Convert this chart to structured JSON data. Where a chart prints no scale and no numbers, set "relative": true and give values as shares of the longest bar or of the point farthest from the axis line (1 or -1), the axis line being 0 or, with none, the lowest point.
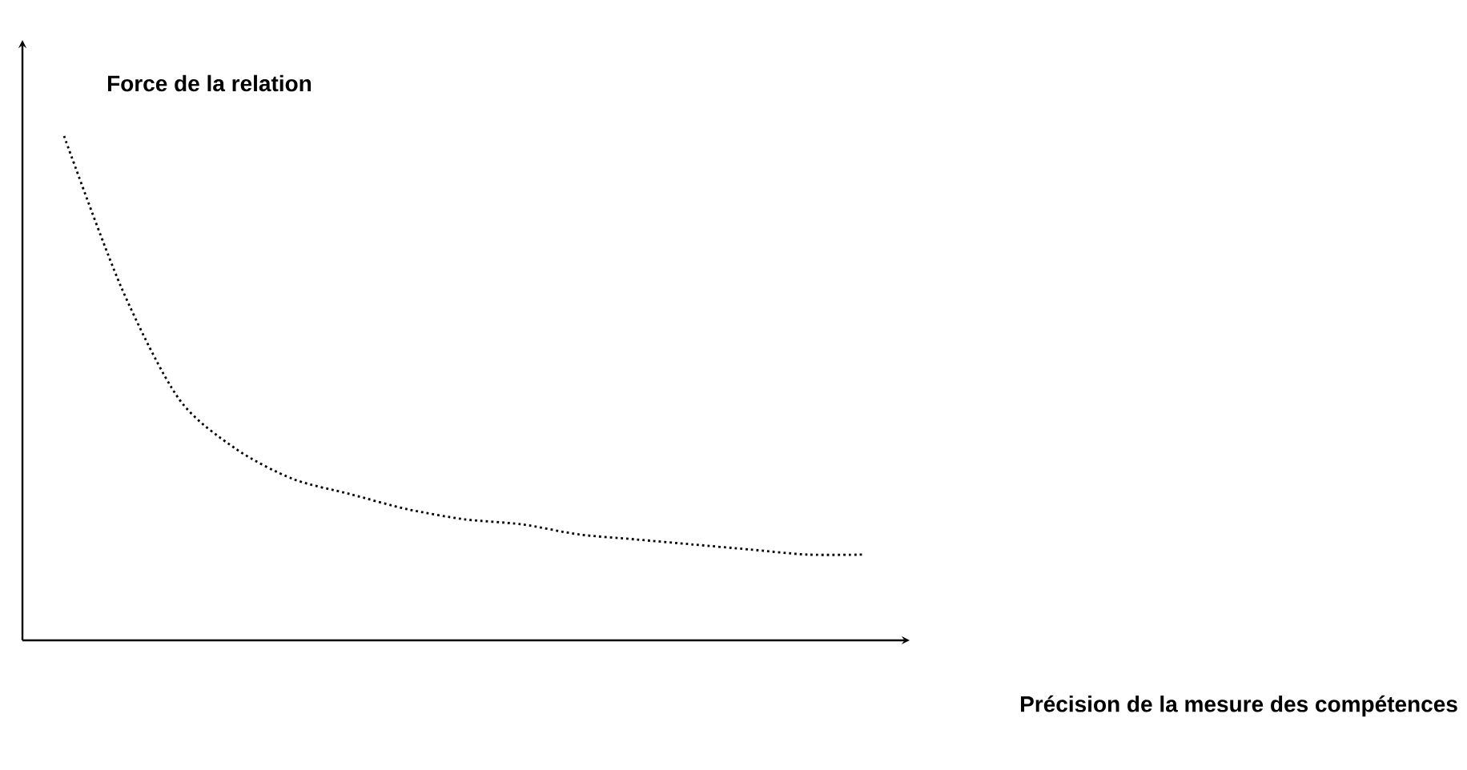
{
  "chart_data": {
    "type": "line",
    "relative": true,
    "ylabel": "Force de la relation",
    "annotations": [
      "Précision de la mesure des compétences"
    ],
    "categories": [
      null,
      null,
      null,
      null,
      null,
      null,
      null,
      null,
      null,
      null,
      null,
      null,
      null,
      null,
      null
    ],
    "series": [
      {
        "color": "#000000",
        "values": [
          1,
          0.7,
          0.48,
          0.38,
          0.32,
          0.29,
          0.26,
          0.24,
          0.23,
          0.21,
          0.2,
          0.19,
          0.18,
          0.17,
          0.17
        ]
      }
    ],
    "line_style": "dotted",
    "marker": "none"
  }
}
